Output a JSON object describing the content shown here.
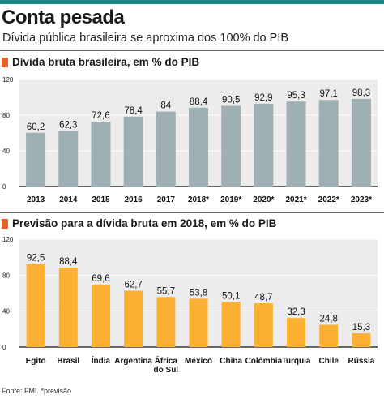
{
  "header": {
    "title": "Conta pesada",
    "subtitle": "Dívida pública brasileira se aproxima dos 100% do PIB"
  },
  "colors": {
    "accent_rule": "#1d8a8a",
    "section_marker": "#e8632b",
    "bar_gray": "#9fb0b4",
    "bar_yellow": "#fbb033",
    "plot_bg": "#ececec"
  },
  "footnote": "Fonte: FMI. *previsão",
  "chart_data": [
    {
      "type": "bar",
      "title": "Dívida bruta brasileira, em % do PIB",
      "categories": [
        "2013",
        "2014",
        "2015",
        "2016",
        "2017",
        "2018*",
        "2019*",
        "2020*",
        "2021*",
        "2022*",
        "2023*"
      ],
      "values": [
        60.2,
        62.3,
        72.6,
        78.4,
        84,
        88.4,
        90.5,
        92.9,
        95.3,
        97.1,
        98.3
      ],
      "value_labels": [
        "60,2",
        "62,3",
        "72,6",
        "78,4",
        "84",
        "88,4",
        "90,5",
        "92,9",
        "95,3",
        "97,1",
        "98,3"
      ],
      "ylim": [
        0,
        120
      ],
      "yticks": [
        "0",
        "40",
        "80",
        "120"
      ],
      "ytick_values": [
        0,
        40,
        80,
        120
      ],
      "grid": true,
      "bar_color": "#9fb0b4"
    },
    {
      "type": "bar",
      "title": "Previsão para a dívida bruta em 2018, em % do PIB",
      "categories": [
        "Egito",
        "Brasil",
        "Índia",
        "Argentina",
        "África do Sul",
        "México",
        "China",
        "Colômbia",
        "Turquia",
        "Chile",
        "Rússia"
      ],
      "category_lines": [
        [
          "Egito"
        ],
        [
          "Brasil"
        ],
        [
          "Índia"
        ],
        [
          "Argentina"
        ],
        [
          "África",
          "do Sul"
        ],
        [
          "México"
        ],
        [
          "China"
        ],
        [
          "Colômbia"
        ],
        [
          "Turquia"
        ],
        [
          "Chile"
        ],
        [
          "Rússia"
        ]
      ],
      "values": [
        92.5,
        88.4,
        69.6,
        62.7,
        55.7,
        53.8,
        50.1,
        48.7,
        32.3,
        24.8,
        15.3
      ],
      "value_labels": [
        "92,5",
        "88,4",
        "69,6",
        "62,7",
        "55,7",
        "53,8",
        "50,1",
        "48,7",
        "32,3",
        "24,8",
        "15,3"
      ],
      "ylim": [
        0,
        120
      ],
      "yticks": [
        "0",
        "40",
        "80",
        "120"
      ],
      "ytick_values": [
        0,
        40,
        80,
        120
      ],
      "grid": true,
      "bar_color": "#fbb033"
    }
  ]
}
